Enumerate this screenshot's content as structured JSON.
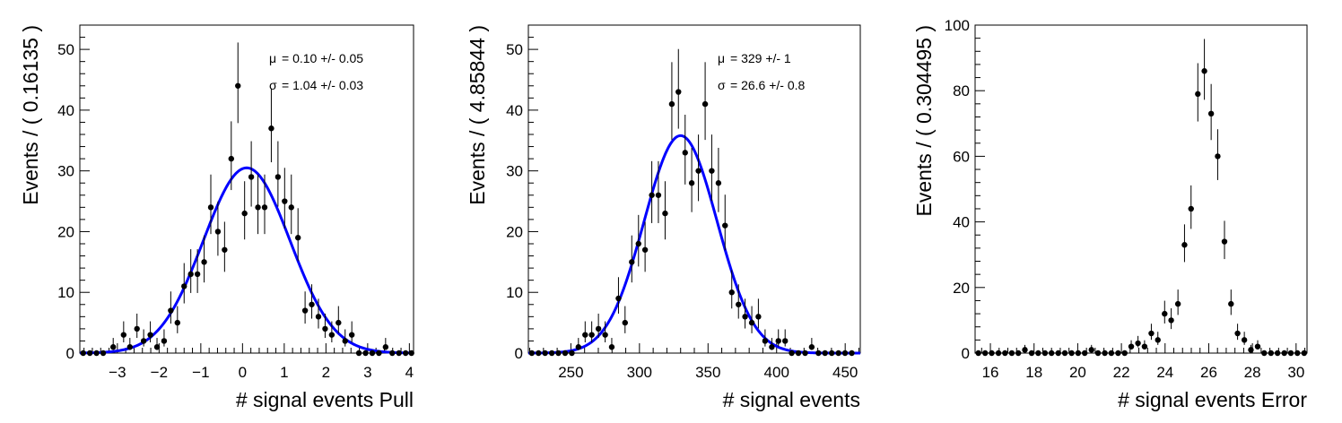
{
  "chart_data": [
    {
      "type": "scatter",
      "xlabel": "# signal events Pull",
      "ylabel": "Events / ( 0.16135 )",
      "xlim": [
        -3.9,
        4.1
      ],
      "ylim": [
        0,
        54
      ],
      "xticks": [
        -3,
        -2,
        -1,
        0,
        1,
        2,
        3,
        4
      ],
      "xtick_labels": [
        "−3",
        "−2",
        "−1",
        "0",
        "1",
        "2",
        "3",
        "4"
      ],
      "yticks": [
        0,
        10,
        20,
        30,
        40,
        50
      ],
      "ytick_labels": [
        "0",
        "10",
        "20",
        "30",
        "40",
        "50"
      ],
      "stats": [
        {
          "symbol": "μ",
          "text": "=  0.10 +/- 0.05"
        },
        {
          "symbol": "σ",
          "text": "=  1.04 +/- 0.03"
        }
      ],
      "fit_color": "#0000ff",
      "fit": {
        "mean": 0.1,
        "sigma": 1.04,
        "amplitude": 30.5
      },
      "points": [
        {
          "x": -3.82,
          "y": 0
        },
        {
          "x": -3.66,
          "y": 0
        },
        {
          "x": -3.5,
          "y": 0
        },
        {
          "x": -3.34,
          "y": 0
        },
        {
          "x": -3.1,
          "y": 1
        },
        {
          "x": -2.85,
          "y": 3
        },
        {
          "x": -2.7,
          "y": 1
        },
        {
          "x": -2.53,
          "y": 4
        },
        {
          "x": -2.37,
          "y": 2
        },
        {
          "x": -2.21,
          "y": 3
        },
        {
          "x": -2.05,
          "y": 1
        },
        {
          "x": -1.88,
          "y": 2
        },
        {
          "x": -1.72,
          "y": 7
        },
        {
          "x": -1.56,
          "y": 5
        },
        {
          "x": -1.4,
          "y": 11
        },
        {
          "x": -1.24,
          "y": 13
        },
        {
          "x": -1.08,
          "y": 13
        },
        {
          "x": -0.92,
          "y": 15
        },
        {
          "x": -0.76,
          "y": 24
        },
        {
          "x": -0.59,
          "y": 20
        },
        {
          "x": -0.43,
          "y": 17
        },
        {
          "x": -0.27,
          "y": 32
        },
        {
          "x": -0.11,
          "y": 44
        },
        {
          "x": 0.05,
          "y": 23
        },
        {
          "x": 0.21,
          "y": 29
        },
        {
          "x": 0.37,
          "y": 24
        },
        {
          "x": 0.53,
          "y": 24
        },
        {
          "x": 0.69,
          "y": 37
        },
        {
          "x": 0.85,
          "y": 29
        },
        {
          "x": 1.01,
          "y": 25
        },
        {
          "x": 1.17,
          "y": 24
        },
        {
          "x": 1.33,
          "y": 19
        },
        {
          "x": 1.5,
          "y": 7
        },
        {
          "x": 1.66,
          "y": 8
        },
        {
          "x": 1.82,
          "y": 6
        },
        {
          "x": 1.98,
          "y": 4
        },
        {
          "x": 2.14,
          "y": 3
        },
        {
          "x": 2.3,
          "y": 5
        },
        {
          "x": 2.46,
          "y": 2
        },
        {
          "x": 2.62,
          "y": 3
        },
        {
          "x": 2.79,
          "y": 0
        },
        {
          "x": 2.95,
          "y": 0
        },
        {
          "x": 3.11,
          "y": 0
        },
        {
          "x": 3.27,
          "y": 0
        },
        {
          "x": 3.43,
          "y": 1
        },
        {
          "x": 3.59,
          "y": 0
        },
        {
          "x": 3.75,
          "y": 0
        },
        {
          "x": 3.91,
          "y": 0
        },
        {
          "x": 4.05,
          "y": 0
        }
      ]
    },
    {
      "type": "scatter",
      "xlabel": "# signal events",
      "ylabel": "Events / ( 4.85844 )",
      "xlim": [
        219,
        461
      ],
      "ylim": [
        0,
        54
      ],
      "xticks": [
        250,
        300,
        350,
        400,
        450
      ],
      "xtick_labels": [
        "250",
        "300",
        "350",
        "400",
        "450"
      ],
      "yticks": [
        0,
        10,
        20,
        30,
        40,
        50
      ],
      "ytick_labels": [
        "0",
        "10",
        "20",
        "30",
        "40",
        "50"
      ],
      "stats": [
        {
          "symbol": "μ",
          "text": "=  329 +/- 1"
        },
        {
          "symbol": "σ",
          "text": "=  26.6 +/- 0.8"
        }
      ],
      "fit_color": "#0000ff",
      "fit": {
        "mean": 330,
        "sigma": 26.6,
        "amplitude": 35.8
      },
      "points": [
        {
          "x": 221.5,
          "y": 0
        },
        {
          "x": 226.4,
          "y": 0
        },
        {
          "x": 231.2,
          "y": 0
        },
        {
          "x": 236.1,
          "y": 0
        },
        {
          "x": 240.9,
          "y": 0
        },
        {
          "x": 245.8,
          "y": 0
        },
        {
          "x": 250.7,
          "y": 0
        },
        {
          "x": 255.5,
          "y": 1
        },
        {
          "x": 260.4,
          "y": 3
        },
        {
          "x": 265.2,
          "y": 3
        },
        {
          "x": 270.1,
          "y": 4
        },
        {
          "x": 275.0,
          "y": 3
        },
        {
          "x": 279.8,
          "y": 1
        },
        {
          "x": 284.7,
          "y": 9
        },
        {
          "x": 289.5,
          "y": 5
        },
        {
          "x": 294.4,
          "y": 15
        },
        {
          "x": 299.3,
          "y": 18
        },
        {
          "x": 304.1,
          "y": 17
        },
        {
          "x": 309.0,
          "y": 26
        },
        {
          "x": 313.8,
          "y": 26
        },
        {
          "x": 318.7,
          "y": 23
        },
        {
          "x": 323.6,
          "y": 41
        },
        {
          "x": 328.4,
          "y": 43
        },
        {
          "x": 333.3,
          "y": 33
        },
        {
          "x": 338.1,
          "y": 28
        },
        {
          "x": 343.0,
          "y": 30
        },
        {
          "x": 347.9,
          "y": 41
        },
        {
          "x": 352.7,
          "y": 30
        },
        {
          "x": 357.6,
          "y": 28
        },
        {
          "x": 362.4,
          "y": 21
        },
        {
          "x": 367.3,
          "y": 10
        },
        {
          "x": 372.2,
          "y": 8
        },
        {
          "x": 377.0,
          "y": 6
        },
        {
          "x": 381.9,
          "y": 5
        },
        {
          "x": 386.7,
          "y": 6
        },
        {
          "x": 391.6,
          "y": 2
        },
        {
          "x": 396.5,
          "y": 1
        },
        {
          "x": 401.3,
          "y": 2
        },
        {
          "x": 406.2,
          "y": 2
        },
        {
          "x": 411.0,
          "y": 0
        },
        {
          "x": 415.9,
          "y": 0
        },
        {
          "x": 420.8,
          "y": 0
        },
        {
          "x": 425.6,
          "y": 1
        },
        {
          "x": 430.5,
          "y": 0
        },
        {
          "x": 435.3,
          "y": 0
        },
        {
          "x": 440.2,
          "y": 0
        },
        {
          "x": 445.1,
          "y": 0
        },
        {
          "x": 449.9,
          "y": 0
        },
        {
          "x": 454.8,
          "y": 0
        }
      ]
    },
    {
      "type": "scatter",
      "xlabel": "# signal events Error",
      "ylabel": "Events / ( 0.304495 )",
      "xlim": [
        15.3,
        30.5
      ],
      "ylim": [
        0,
        100
      ],
      "xticks": [
        16,
        18,
        20,
        22,
        24,
        26,
        28,
        30
      ],
      "xtick_labels": [
        "16",
        "18",
        "20",
        "22",
        "24",
        "26",
        "28",
        "30"
      ],
      "yticks": [
        0,
        20,
        40,
        60,
        80,
        100
      ],
      "ytick_labels": [
        "0",
        "20",
        "40",
        "60",
        "80",
        "100"
      ],
      "stats": [],
      "points": [
        {
          "x": 15.45,
          "y": 0
        },
        {
          "x": 15.76,
          "y": 0
        },
        {
          "x": 16.06,
          "y": 0
        },
        {
          "x": 16.37,
          "y": 0
        },
        {
          "x": 16.67,
          "y": 0
        },
        {
          "x": 16.98,
          "y": 0
        },
        {
          "x": 17.28,
          "y": 0
        },
        {
          "x": 17.58,
          "y": 1
        },
        {
          "x": 17.89,
          "y": 0
        },
        {
          "x": 18.19,
          "y": 0
        },
        {
          "x": 18.5,
          "y": 0
        },
        {
          "x": 18.8,
          "y": 0
        },
        {
          "x": 19.11,
          "y": 0
        },
        {
          "x": 19.41,
          "y": 0
        },
        {
          "x": 19.72,
          "y": 0
        },
        {
          "x": 20.02,
          "y": 0
        },
        {
          "x": 20.32,
          "y": 0
        },
        {
          "x": 20.63,
          "y": 1
        },
        {
          "x": 20.93,
          "y": 0
        },
        {
          "x": 21.24,
          "y": 0
        },
        {
          "x": 21.54,
          "y": 0
        },
        {
          "x": 21.85,
          "y": 0
        },
        {
          "x": 22.15,
          "y": 0
        },
        {
          "x": 22.45,
          "y": 2
        },
        {
          "x": 22.76,
          "y": 3
        },
        {
          "x": 23.06,
          "y": 2
        },
        {
          "x": 23.37,
          "y": 6
        },
        {
          "x": 23.67,
          "y": 4
        },
        {
          "x": 23.98,
          "y": 12
        },
        {
          "x": 24.28,
          "y": 10
        },
        {
          "x": 24.59,
          "y": 15
        },
        {
          "x": 24.89,
          "y": 33
        },
        {
          "x": 25.19,
          "y": 44
        },
        {
          "x": 25.5,
          "y": 79
        },
        {
          "x": 25.8,
          "y": 86
        },
        {
          "x": 26.11,
          "y": 73
        },
        {
          "x": 26.41,
          "y": 60
        },
        {
          "x": 26.72,
          "y": 34
        },
        {
          "x": 27.02,
          "y": 15
        },
        {
          "x": 27.32,
          "y": 6
        },
        {
          "x": 27.63,
          "y": 4
        },
        {
          "x": 27.93,
          "y": 1
        },
        {
          "x": 28.24,
          "y": 2
        },
        {
          "x": 28.54,
          "y": 0
        },
        {
          "x": 28.85,
          "y": 0
        },
        {
          "x": 29.15,
          "y": 0
        },
        {
          "x": 29.46,
          "y": 0
        },
        {
          "x": 29.76,
          "y": 0
        },
        {
          "x": 30.06,
          "y": 0
        },
        {
          "x": 30.37,
          "y": 0
        }
      ]
    }
  ]
}
